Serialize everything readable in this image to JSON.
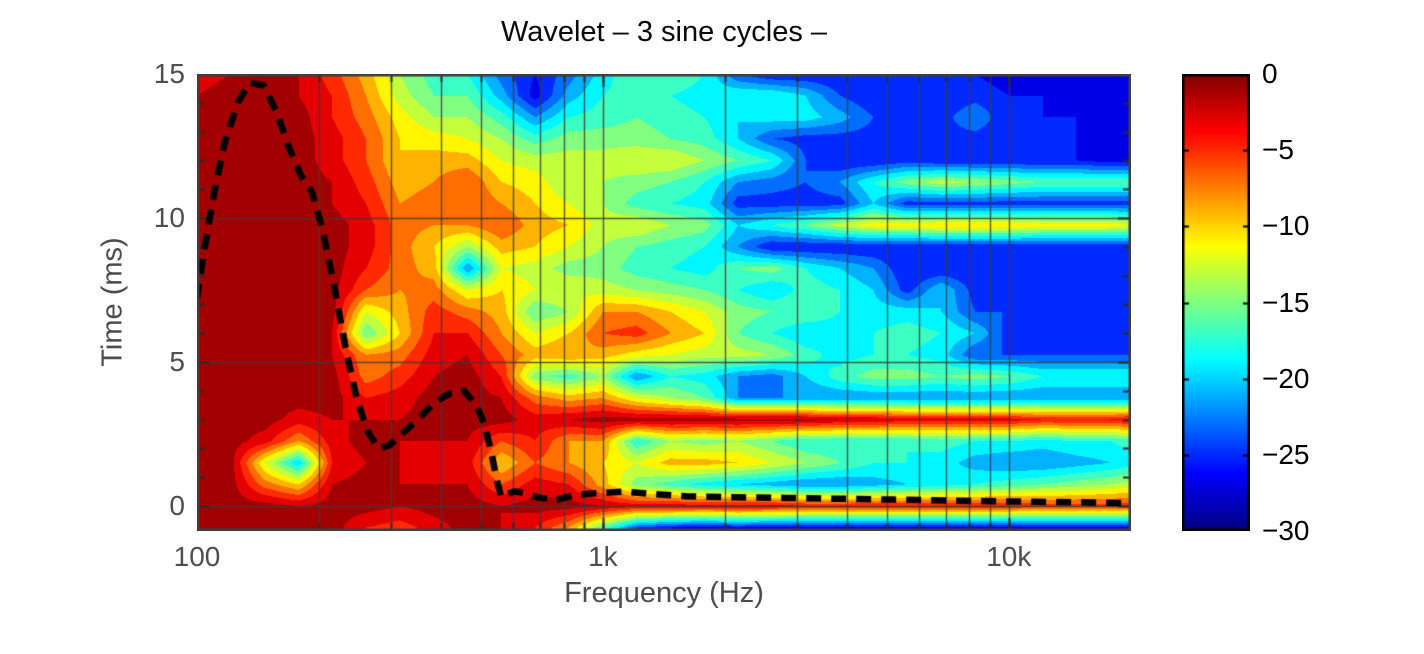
{
  "colors": {
    "background": "#ffffff",
    "title_text": "#0a0a0a",
    "axis_text": "#4d4d4d",
    "grid_line": "#3c3c3c",
    "frame": "#3f3f3f",
    "tick_mark": "#2a2a2a",
    "dashed_line": "#000000"
  },
  "chart_data": {
    "type": "heatmap",
    "title": "Wavelet – 3 sine cycles –",
    "xlabel": "Frequency (Hz)",
    "ylabel": "Time (ms)",
    "x_scale": "log",
    "x_range": [
      100,
      20000
    ],
    "y_range": [
      -0.87,
      15
    ],
    "x_ticks": [
      {
        "value": 100,
        "label": "100"
      },
      {
        "value": 1000,
        "label": "1k"
      },
      {
        "value": 10000,
        "label": "10k"
      }
    ],
    "y_ticks": [
      {
        "value": 0,
        "label": "0"
      },
      {
        "value": 5,
        "label": "5"
      },
      {
        "value": 10,
        "label": "10"
      },
      {
        "value": 15,
        "label": "15"
      }
    ],
    "y_minor_ticks": [
      1,
      2,
      3,
      4,
      6,
      7,
      8,
      9,
      11,
      12,
      13,
      14
    ],
    "grid_x": [
      200,
      300,
      400,
      500,
      600,
      700,
      800,
      900,
      1000,
      2000,
      3000,
      4000,
      5000,
      6000,
      7000,
      8000,
      9000,
      10000
    ],
    "grid_y": [
      0,
      5,
      10,
      15
    ],
    "colorbar": {
      "min": -30,
      "max": 0,
      "colormap": "jet",
      "ticks": [
        {
          "value": 0,
          "label": "0"
        },
        {
          "value": -5,
          "label": "−5"
        },
        {
          "value": -10,
          "label": "−10"
        },
        {
          "value": -15,
          "label": "−15"
        },
        {
          "value": -20,
          "label": "−20"
        },
        {
          "value": -25,
          "label": "−25"
        },
        {
          "value": -30,
          "label": "−30"
        }
      ]
    },
    "contour_step_db": 2,
    "freqs": [
      100,
      121,
      147,
      178,
      215,
      261,
      316,
      383,
      464,
      562,
      681,
      825,
      1000,
      1211,
      1468,
      1778,
      2154,
      2610,
      3162,
      3831,
      4642,
      5623,
      6813,
      8254,
      10000,
      12115,
      14678,
      17783,
      20000
    ],
    "times": [
      15,
      14.25,
      13.5,
      12.75,
      12,
      11.25,
      10.5,
      9.75,
      9,
      8.25,
      7.5,
      6.75,
      6,
      5.25,
      4.5,
      3.75,
      3,
      2.25,
      1.5,
      0.75,
      0,
      -0.75
    ],
    "values_db": [
      [
        -3,
        -2,
        -1,
        -2,
        -5,
        -9,
        -14,
        -17,
        -18,
        -23,
        -26,
        -23,
        -19,
        -16,
        -16,
        -18,
        -24,
        -26,
        -26,
        -26,
        -26,
        -26,
        -26,
        -26,
        -27,
        -27,
        -27,
        -27,
        -27
      ],
      [
        -2,
        -1,
        -1,
        -2,
        -4,
        -8,
        -13,
        -16,
        -16,
        -21,
        -27,
        -21,
        -18,
        -17,
        -18,
        -19,
        -18,
        -18,
        -20,
        -24,
        -26,
        -26,
        -26,
        -25,
        -26,
        -26,
        -27,
        -27,
        -27
      ],
      [
        -1,
        -1,
        -1,
        -1,
        -4,
        -7,
        -11,
        -14,
        -14,
        -17,
        -22,
        -18,
        -17,
        -16,
        -17,
        -18,
        -20,
        -19,
        -19,
        -21,
        -24,
        -26,
        -25,
        -22,
        -26,
        -26,
        -26,
        -27,
        -27
      ],
      [
        -1,
        -1,
        -1,
        -1,
        -3,
        -6,
        -10,
        -11,
        -12,
        -14,
        -17,
        -15,
        -15,
        -15,
        -16,
        -17,
        -20,
        -24,
        -25,
        -25,
        -25,
        -25,
        -25,
        -25,
        -26,
        -26,
        -26,
        -26,
        -26
      ],
      [
        -1,
        -1,
        -1,
        -1,
        -3,
        -6,
        -10,
        -9,
        -9,
        -12,
        -13,
        -13,
        -13,
        -12,
        -12,
        -14,
        -16,
        -18,
        -24,
        -26,
        -26,
        -25,
        -26,
        -26,
        -26,
        -26,
        -26,
        -27,
        -27
      ],
      [
        -1,
        -1,
        -1,
        -1,
        -2,
        -5,
        -9,
        -8,
        -6,
        -10,
        -11,
        -14,
        -14,
        -15,
        -16,
        -18,
        -22,
        -23,
        -24,
        -22,
        -18,
        -15,
        -13,
        -14,
        -15,
        -16,
        -16,
        -16,
        -16
      ],
      [
        -1,
        -1,
        -1,
        -1,
        -2,
        -4,
        -8,
        -7,
        -6,
        -8,
        -10,
        -12,
        -14,
        -17,
        -18,
        -19,
        -25,
        -25,
        -25,
        -25,
        -20,
        -25,
        -25,
        -25,
        -25,
        -25,
        -25,
        -25,
        -25
      ],
      [
        -1,
        -1,
        -1,
        -1,
        -1,
        -3,
        -7,
        -8,
        -8,
        -6,
        -9,
        -10,
        -13,
        -12,
        -14,
        -15,
        -20,
        -18,
        -16,
        -13,
        -11,
        -11,
        -10,
        -10,
        -10,
        -11,
        -11,
        -11,
        -12
      ],
      [
        -1,
        -1,
        -1,
        -1,
        -1,
        -3,
        -7,
        -10,
        -14,
        -9,
        -10,
        -12,
        -14,
        -16,
        -17,
        -18,
        -22,
        -26,
        -26,
        -26,
        -26,
        -26,
        -26,
        -26,
        -26,
        -26,
        -26,
        -26,
        -26
      ],
      [
        -1,
        -1,
        -1,
        -1,
        -1,
        -4,
        -7,
        -9,
        -22,
        -12,
        -13,
        -15,
        -15,
        -17,
        -18,
        -19,
        -16,
        -15,
        -18,
        -20,
        -22,
        -26,
        -26,
        -26,
        -26,
        -26,
        -26,
        -26,
        -26
      ],
      [
        -1,
        -1,
        -1,
        -1,
        -1,
        -6,
        -8,
        -7,
        -12,
        -10,
        -12,
        -12,
        -13,
        -14,
        -15,
        -16,
        -18,
        -20,
        -17,
        -18,
        -20,
        -25,
        -20,
        -25,
        -25,
        -25,
        -25,
        -25,
        -25
      ],
      [
        -1,
        -1,
        -1,
        -1,
        -1,
        -12,
        -9,
        -5,
        -7,
        -9,
        -16,
        -14,
        -8,
        -8,
        -10,
        -12,
        -15,
        -16,
        -16,
        -18,
        -19,
        -19,
        -20,
        -24,
        -24,
        -24,
        -24,
        -24,
        -24
      ],
      [
        -1,
        -1,
        -1,
        -1,
        -2,
        -16,
        -10,
        -4,
        -4,
        -8,
        -12,
        -10,
        -6,
        -5,
        -8,
        -10,
        -16,
        -18,
        -20,
        -19,
        -18,
        -17,
        -18,
        -20,
        -25,
        -25,
        -25,
        -25,
        -25
      ],
      [
        -1,
        -1,
        -1,
        -1,
        -2,
        -8,
        -7,
        -3,
        -2,
        -6,
        -9,
        -8,
        -9,
        -11,
        -12,
        -13,
        -13,
        -14,
        -17,
        -19,
        -18,
        -18,
        -19,
        -24,
        -24,
        -24,
        -24,
        -24,
        -24
      ],
      [
        -1,
        -1,
        -1,
        -1,
        -1,
        -7,
        -5,
        -2,
        -1,
        -4,
        -15,
        -17,
        -14,
        -22,
        -18,
        -19,
        -22,
        -23,
        -20,
        -17,
        -15,
        -15,
        -16,
        -15,
        -16,
        -18,
        -18,
        -18,
        -18
      ],
      [
        -1,
        -1,
        -1,
        -1,
        -1,
        -4,
        -3,
        -1,
        -1,
        -2,
        -7,
        -9,
        -8,
        -12,
        -14,
        -16,
        -22,
        -22,
        -22,
        -22,
        -22,
        -22,
        -22,
        -22,
        -22,
        -22,
        -22,
        -22,
        -22
      ],
      [
        -1,
        -1,
        -1,
        -3,
        -2,
        -2,
        -2,
        -1,
        -1,
        -1,
        -3,
        -2,
        -1,
        -1,
        -1,
        -1,
        -1,
        -1,
        -1,
        -2,
        -2,
        -3,
        -3,
        -3,
        -3,
        -4,
        -4,
        -4,
        -3
      ],
      [
        -1,
        -1,
        -3,
        -8,
        -3,
        -1,
        -2,
        -2,
        -2,
        -6,
        -4,
        -8,
        -8,
        -18,
        -14,
        -15,
        -14,
        -16,
        -18,
        -18,
        -18,
        -18,
        -17,
        -18,
        -18,
        -19,
        -18,
        -18,
        -17
      ],
      [
        -1,
        -1,
        -12,
        -20,
        -4,
        -2,
        -2,
        -3,
        -3,
        -10,
        -6,
        -8,
        -10,
        -12,
        -9,
        -9,
        -10,
        -12,
        -14,
        -16,
        -18,
        -18,
        -19,
        -21,
        -22,
        -22,
        -21,
        -20,
        -19
      ],
      [
        -1,
        -1,
        -7,
        -10,
        -2,
        -1,
        -2,
        -2,
        -2,
        -6,
        -3,
        -4,
        -9,
        -15,
        -17,
        -19,
        -20,
        -21,
        -22,
        -22,
        -21,
        -20,
        -19,
        -18,
        -17,
        -16,
        -15,
        -14,
        -13
      ],
      [
        -1,
        -1,
        -1,
        -2,
        -1,
        -1,
        -2,
        -1,
        -1,
        -2,
        -1,
        -1,
        -2,
        -3,
        -3,
        -3,
        -3,
        -3,
        -4,
        -4,
        -4,
        -4,
        -4,
        -4,
        -4,
        -5,
        -5,
        -5,
        -5
      ],
      [
        -1,
        -1,
        -1,
        -1,
        -1,
        -4,
        -5,
        -3,
        -1,
        -2,
        -4,
        -8,
        -16,
        -24,
        -26,
        -27,
        -26,
        -27,
        -27,
        -27,
        -27,
        -27,
        -27,
        -27,
        -27,
        -27,
        -27,
        -27,
        -27
      ]
    ],
    "overlay_dashed_line": {
      "description": "group-delay overlay curve",
      "points": [
        [
          100,
          7.2
        ],
        [
          104,
          8.8
        ],
        [
          110,
          10.8
        ],
        [
          117,
          12.6
        ],
        [
          126,
          14.0
        ],
        [
          135,
          14.7
        ],
        [
          146,
          14.6
        ],
        [
          157,
          13.7
        ],
        [
          168,
          12.5
        ],
        [
          180,
          11.5
        ],
        [
          192,
          10.9
        ],
        [
          204,
          9.6
        ],
        [
          218,
          7.6
        ],
        [
          233,
          5.4
        ],
        [
          248,
          3.7
        ],
        [
          263,
          2.6
        ],
        [
          280,
          2.0
        ],
        [
          298,
          2.1
        ],
        [
          320,
          2.5
        ],
        [
          350,
          3.0
        ],
        [
          385,
          3.6
        ],
        [
          420,
          3.9
        ],
        [
          455,
          4.0
        ],
        [
          488,
          3.5
        ],
        [
          512,
          2.8
        ],
        [
          532,
          1.8
        ],
        [
          548,
          0.9
        ],
        [
          562,
          0.3
        ],
        [
          580,
          0.4
        ],
        [
          605,
          0.5
        ],
        [
          640,
          0.45
        ],
        [
          700,
          0.28
        ],
        [
          770,
          0.22
        ],
        [
          840,
          0.35
        ],
        [
          920,
          0.42
        ],
        [
          1000,
          0.45
        ],
        [
          1120,
          0.5
        ],
        [
          1300,
          0.42
        ],
        [
          1600,
          0.34
        ],
        [
          2100,
          0.3
        ],
        [
          2800,
          0.28
        ],
        [
          3800,
          0.25
        ],
        [
          5200,
          0.22
        ],
        [
          7500,
          0.18
        ],
        [
          11000,
          0.15
        ],
        [
          16000,
          0.12
        ],
        [
          20000,
          0.1
        ]
      ]
    }
  }
}
